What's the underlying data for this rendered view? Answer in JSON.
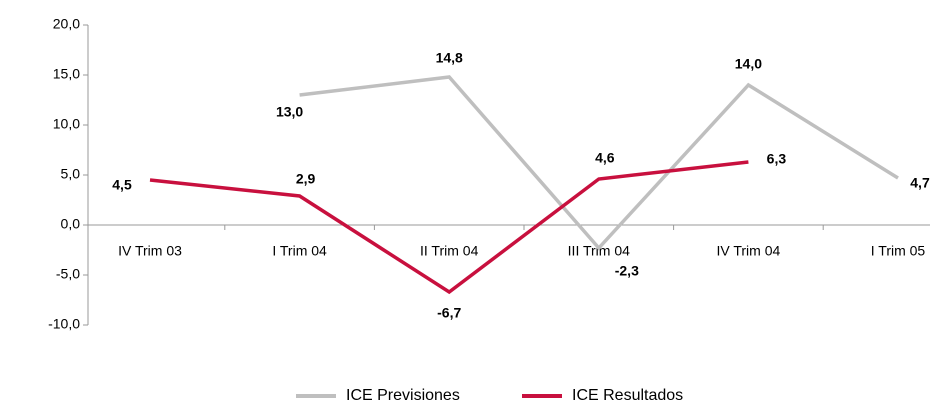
{
  "chart_data": {
    "type": "line",
    "categories": [
      "IV Trim 03",
      "I Trim 04",
      "II Trim 04",
      "III Trim 04",
      "IV Trim 04",
      "I Trim 05"
    ],
    "series": [
      {
        "name": "ICE Previsiones",
        "color": "#bfbfbf",
        "values": [
          null,
          13.0,
          14.8,
          -2.3,
          14.0,
          4.7
        ],
        "value_labels": [
          null,
          "13,0",
          "14,8",
          "-2,3",
          "14,0",
          "4,7"
        ]
      },
      {
        "name": "ICE Resultados",
        "color": "#c8103e",
        "values": [
          4.5,
          2.9,
          -6.7,
          4.6,
          6.3,
          null
        ],
        "value_labels": [
          "4,5",
          "2,9",
          "-6,7",
          "4,6",
          "6,3",
          null
        ]
      }
    ],
    "ylim": [
      -10,
      20
    ],
    "yticks": [
      {
        "value": -10,
        "label": "-10,0"
      },
      {
        "value": -5,
        "label": "-5,0"
      },
      {
        "value": 0,
        "label": "0,0"
      },
      {
        "value": 5,
        "label": "5,0"
      },
      {
        "value": 10,
        "label": "10,0"
      },
      {
        "value": 15,
        "label": "15,0"
      },
      {
        "value": 20,
        "label": "20,0"
      }
    ],
    "legend": "bottom"
  }
}
